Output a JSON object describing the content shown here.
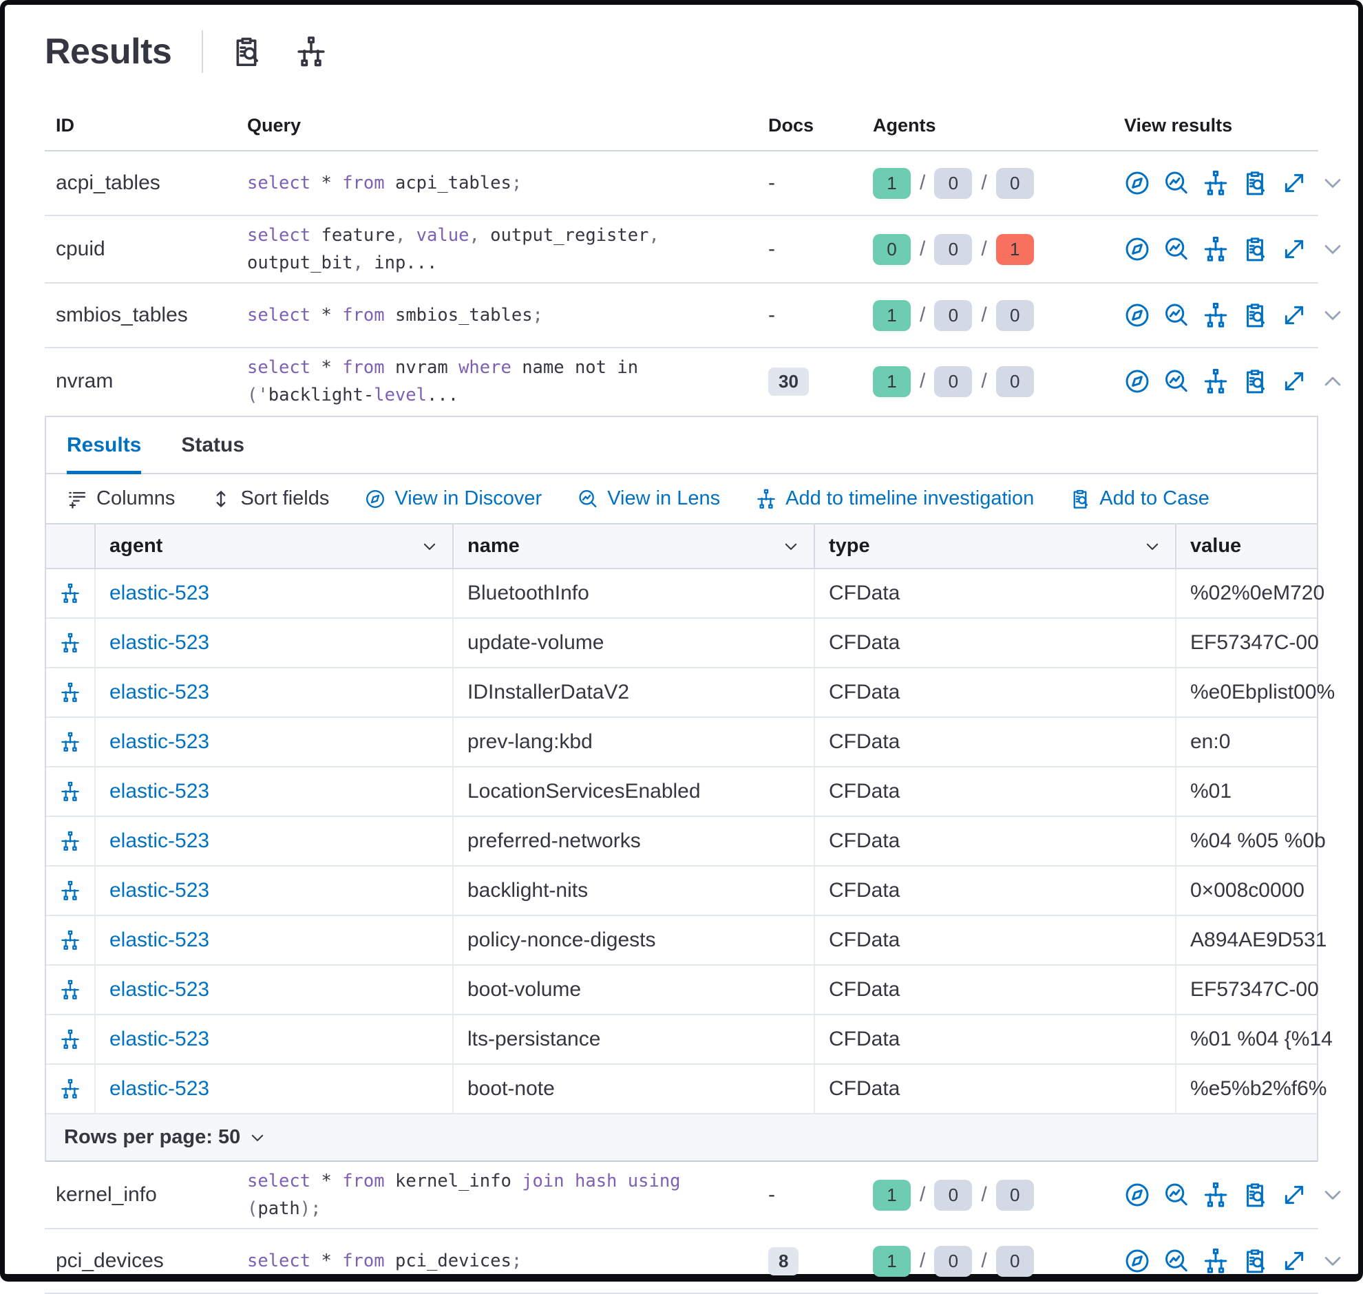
{
  "page": {
    "title": "Results"
  },
  "header": {
    "icons": [
      "inspect-icon",
      "timeline-icon"
    ]
  },
  "colors": {
    "primary_blue": "#0071c2",
    "success_badge": "#6dccb1",
    "danger_badge": "#f8705e",
    "neutral_badge": "#d3dae6",
    "docs_badge": "#e0e5ee",
    "sql_keyword": "#7d60b3",
    "sql_punct": "#69707d",
    "text": "#343741"
  },
  "table": {
    "columns": [
      "ID",
      "Query",
      "Docs",
      "Agents",
      "View results"
    ],
    "rows": [
      {
        "id": "acpi_tables",
        "query": [
          [
            "kw",
            "select"
          ],
          [
            "pl",
            " * "
          ],
          [
            "kw",
            "from"
          ],
          [
            "pl",
            " acpi_tables"
          ],
          [
            "pu",
            ";"
          ]
        ],
        "docs": "-",
        "docs_is_badge": false,
        "agents": [
          "1",
          "0",
          "0"
        ],
        "agent_variants": [
          "success",
          "neutral",
          "neutral"
        ],
        "expanded": false
      },
      {
        "id": "cpuid",
        "query": [
          [
            "kw",
            "select"
          ],
          [
            "pl",
            " feature"
          ],
          [
            "pu",
            ","
          ],
          [
            "pl",
            " "
          ],
          [
            "kw",
            "value"
          ],
          [
            "pu",
            ","
          ],
          [
            "pl",
            " output_register"
          ],
          [
            "pu",
            ","
          ],
          [
            "pl",
            " output_bit"
          ],
          [
            "pu",
            ","
          ],
          [
            "pl",
            " inp..."
          ]
        ],
        "docs": "-",
        "docs_is_badge": false,
        "agents": [
          "0",
          "0",
          "1"
        ],
        "agent_variants": [
          "success",
          "neutral",
          "danger"
        ],
        "expanded": false
      },
      {
        "id": "smbios_tables",
        "query": [
          [
            "kw",
            "select"
          ],
          [
            "pl",
            " * "
          ],
          [
            "kw",
            "from"
          ],
          [
            "pl",
            " smbios_tables"
          ],
          [
            "pu",
            ";"
          ]
        ],
        "docs": "-",
        "docs_is_badge": false,
        "agents": [
          "1",
          "0",
          "0"
        ],
        "agent_variants": [
          "success",
          "neutral",
          "neutral"
        ],
        "expanded": false
      },
      {
        "id": "nvram",
        "query": [
          [
            "kw",
            "select"
          ],
          [
            "pl",
            " * "
          ],
          [
            "kw",
            "from"
          ],
          [
            "pl",
            " nvram "
          ],
          [
            "kw",
            "where"
          ],
          [
            "pl",
            " name not in "
          ],
          [
            "pu",
            "('"
          ],
          [
            "pl",
            "backlight-"
          ],
          [
            "kw",
            "level"
          ],
          [
            "pl",
            "..."
          ]
        ],
        "docs": "30",
        "docs_is_badge": true,
        "agents": [
          "1",
          "0",
          "0"
        ],
        "agent_variants": [
          "success",
          "neutral",
          "neutral"
        ],
        "expanded": true
      },
      {
        "id": "kernel_info",
        "query": [
          [
            "kw",
            "select"
          ],
          [
            "pl",
            " * "
          ],
          [
            "kw",
            "from"
          ],
          [
            "pl",
            " kernel_info "
          ],
          [
            "kw",
            "join"
          ],
          [
            "pl",
            " "
          ],
          [
            "kw",
            "hash"
          ],
          [
            "pl",
            " "
          ],
          [
            "kw",
            "using"
          ],
          [
            "pl",
            " "
          ],
          [
            "pu",
            "("
          ],
          [
            "pl",
            "path"
          ],
          [
            "pu",
            ");"
          ]
        ],
        "docs": "-",
        "docs_is_badge": false,
        "agents": [
          "1",
          "0",
          "0"
        ],
        "agent_variants": [
          "success",
          "neutral",
          "neutral"
        ],
        "expanded": false
      },
      {
        "id": "pci_devices",
        "query": [
          [
            "kw",
            "select"
          ],
          [
            "pl",
            " * "
          ],
          [
            "kw",
            "from"
          ],
          [
            "pl",
            " pci_devices"
          ],
          [
            "pu",
            ";"
          ]
        ],
        "docs": "8",
        "docs_is_badge": true,
        "agents": [
          "1",
          "0",
          "0"
        ],
        "agent_variants": [
          "success",
          "neutral",
          "neutral"
        ],
        "expanded": false
      }
    ],
    "view_result_icons": [
      "discover-icon",
      "lens-icon",
      "timeline-icon",
      "case-icon",
      "expand-icon"
    ]
  },
  "expanded_panel": {
    "tabs": [
      {
        "label": "Results",
        "active": true
      },
      {
        "label": "Status",
        "active": false
      }
    ],
    "toolbar": [
      {
        "label": "Columns",
        "icon": "columns-icon",
        "style": "dark"
      },
      {
        "label": "Sort fields",
        "icon": "sort-icon",
        "style": "dark"
      },
      {
        "label": "View in Discover",
        "icon": "discover-icon",
        "style": "blue"
      },
      {
        "label": "View in Lens",
        "icon": "lens-icon",
        "style": "blue"
      },
      {
        "label": "Add to timeline investigation",
        "icon": "timeline-icon",
        "style": "blue"
      },
      {
        "label": "Add to Case",
        "icon": "case-icon",
        "style": "blue"
      }
    ],
    "grid": {
      "columns": [
        "agent",
        "name",
        "type",
        "value"
      ],
      "rows": [
        {
          "agent": "elastic-523",
          "name": "BluetoothInfo",
          "type": "CFData",
          "value": "%02%0eM720"
        },
        {
          "agent": "elastic-523",
          "name": "update-volume",
          "type": "CFData",
          "value": "EF57347C-00"
        },
        {
          "agent": "elastic-523",
          "name": "IDInstallerDataV2",
          "type": "CFData",
          "value": "%e0Ebplist00%"
        },
        {
          "agent": "elastic-523",
          "name": "prev-lang:kbd",
          "type": "CFData",
          "value": "en:0"
        },
        {
          "agent": "elastic-523",
          "name": "LocationServicesEnabled",
          "type": "CFData",
          "value": "%01"
        },
        {
          "agent": "elastic-523",
          "name": "preferred-networks",
          "type": "CFData",
          "value": "%04 %05 %0b"
        },
        {
          "agent": "elastic-523",
          "name": "backlight-nits",
          "type": "CFData",
          "value": "0×008c0000"
        },
        {
          "agent": "elastic-523",
          "name": "policy-nonce-digests",
          "type": "CFData",
          "value": "A894AE9D531"
        },
        {
          "agent": "elastic-523",
          "name": "boot-volume",
          "type": "CFData",
          "value": "EF57347C-00"
        },
        {
          "agent": "elastic-523",
          "name": "lts-persistance",
          "type": "CFData",
          "value": "%01 %04 {%14"
        },
        {
          "agent": "elastic-523",
          "name": "boot-note",
          "type": "CFData",
          "value": "%e5%b2%f6%"
        }
      ]
    },
    "footer": {
      "rows_per_page": "Rows per page: 50"
    }
  }
}
